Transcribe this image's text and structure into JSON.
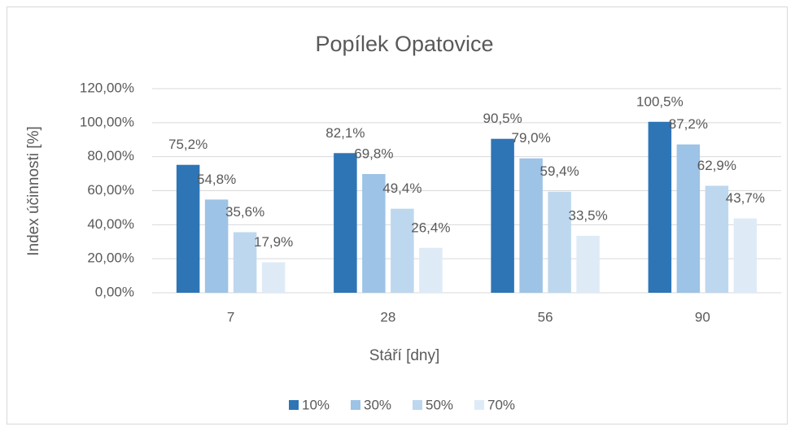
{
  "chart_data": {
    "type": "bar",
    "title": "Popílek Opatovice",
    "x_label": "Stáří [dny]",
    "y_label": "Index účinnosti [%]",
    "categories": [
      "7",
      "28",
      "56",
      "90"
    ],
    "series": [
      {
        "name": "10%",
        "color": "#2e75b6",
        "values": [
          75.2,
          82.1,
          90.5,
          100.5
        ],
        "value_labels": [
          "75,2%",
          "82,1%",
          "90,5%",
          "100,5%"
        ]
      },
      {
        "name": "30%",
        "color": "#9dc3e6",
        "values": [
          54.8,
          69.8,
          79.0,
          87.2
        ],
        "value_labels": [
          "54,8%",
          "69,8%",
          "79,0%",
          "87,2%"
        ]
      },
      {
        "name": "50%",
        "color": "#bdd7ee",
        "values": [
          35.6,
          49.4,
          59.4,
          62.9
        ],
        "value_labels": [
          "35,6%",
          "49,4%",
          "59,4%",
          "62,9%"
        ]
      },
      {
        "name": "70%",
        "color": "#deebf7",
        "values": [
          17.9,
          26.4,
          33.5,
          43.7
        ],
        "value_labels": [
          "17,9%",
          "26,4%",
          "33,5%",
          "43,7%"
        ]
      }
    ],
    "ylim": [
      0,
      120
    ],
    "yticks": [
      {
        "value": 0,
        "label": "0,00%"
      },
      {
        "value": 20,
        "label": "20,00%"
      },
      {
        "value": 40,
        "label": "40,00%"
      },
      {
        "value": 60,
        "label": "60,00%"
      },
      {
        "value": 80,
        "label": "80,00%"
      },
      {
        "value": 100,
        "label": "100,00%"
      },
      {
        "value": 120,
        "label": "120,00%"
      }
    ],
    "grid": true,
    "legend": "bottom"
  }
}
